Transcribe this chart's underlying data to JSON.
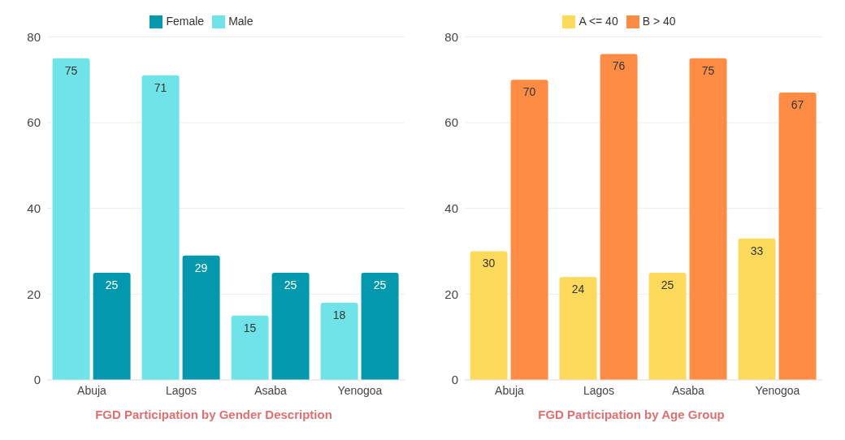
{
  "chart_data": [
    {
      "type": "bar",
      "title": "FGD Participation by Gender Description",
      "categories": [
        "Abuja",
        "Lagos",
        "Asaba",
        "Yenogoa"
      ],
      "series": [
        {
          "name": "Male",
          "color": "#6fe3e8",
          "values": [
            75,
            71,
            15,
            18
          ]
        },
        {
          "name": "Female",
          "color": "#0398ae",
          "values": [
            25,
            29,
            25,
            25
          ]
        }
      ],
      "ylim": [
        0,
        80
      ],
      "yticks": [
        0,
        20,
        40,
        60,
        80
      ],
      "grid": "y",
      "legend": "top",
      "data_labels": true
    },
    {
      "type": "bar",
      "title": "FGD Participation by Age Group",
      "categories": [
        "Abuja",
        "Lagos",
        "Asaba",
        "Yenogoa"
      ],
      "series": [
        {
          "name": "A <= 40",
          "color": "#fdd95c",
          "values": [
            30,
            24,
            25,
            33
          ]
        },
        {
          "name": "B > 40",
          "color": "#ff8c45",
          "values": [
            70,
            76,
            75,
            67
          ]
        }
      ],
      "ylim": [
        0,
        80
      ],
      "yticks": [
        0,
        20,
        40,
        60,
        80
      ],
      "grid": "y",
      "legend": "top",
      "data_labels": true
    }
  ]
}
